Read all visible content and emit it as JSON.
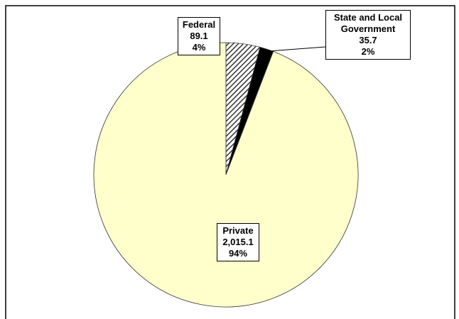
{
  "chart_data": {
    "type": "pie",
    "categories": [
      "Federal",
      "State and Local Government",
      "Private"
    ],
    "values": [
      89.1,
      35.7,
      2015.1
    ],
    "value_labels": [
      "89.1",
      "35.7",
      "2,015.1"
    ],
    "percent_labels": [
      "4%",
      "2%",
      "94%"
    ],
    "colors": [
      "#9a9a9a",
      "#000000",
      "#ffffcc"
    ],
    "hatched": [
      true,
      false,
      false
    ]
  }
}
